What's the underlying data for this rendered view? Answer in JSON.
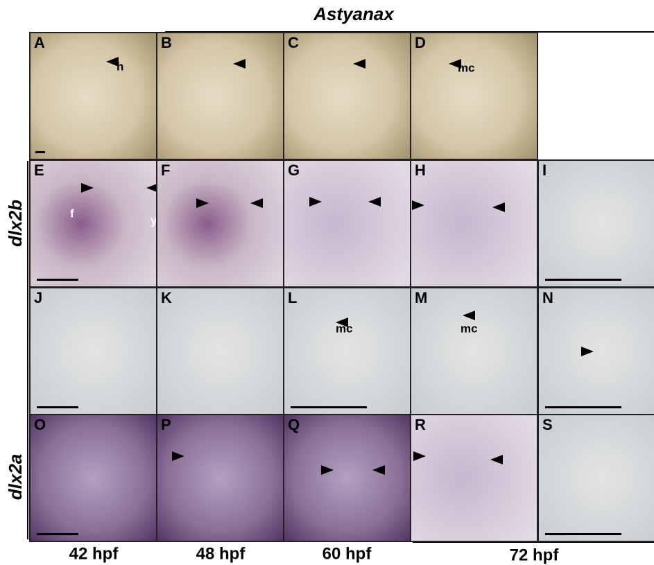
{
  "title": "Astyanax",
  "row_labels": [
    "dlx2b",
    "dlx2a"
  ],
  "panels": [
    {
      "letter": "A",
      "labels": [
        "h"
      ]
    },
    {
      "letter": "B",
      "labels": []
    },
    {
      "letter": "C",
      "labels": []
    },
    {
      "letter": "D",
      "labels": [
        "mc"
      ]
    },
    {
      "letter": "E",
      "labels": [
        "f",
        "y"
      ]
    },
    {
      "letter": "F",
      "labels": []
    },
    {
      "letter": "G",
      "labels": []
    },
    {
      "letter": "H",
      "labels": []
    },
    {
      "letter": "I",
      "labels": []
    },
    {
      "letter": "J",
      "labels": []
    },
    {
      "letter": "K",
      "labels": []
    },
    {
      "letter": "L",
      "labels": [
        "mc"
      ]
    },
    {
      "letter": "M",
      "labels": [
        "mc"
      ]
    },
    {
      "letter": "N",
      "labels": []
    },
    {
      "letter": "O",
      "labels": []
    },
    {
      "letter": "P",
      "labels": []
    },
    {
      "letter": "Q",
      "labels": []
    },
    {
      "letter": "R",
      "labels": []
    },
    {
      "letter": "S",
      "labels": []
    }
  ],
  "columns": [
    "42 hpf",
    "48 hpf",
    "60 hpf",
    "72 hpf"
  ]
}
